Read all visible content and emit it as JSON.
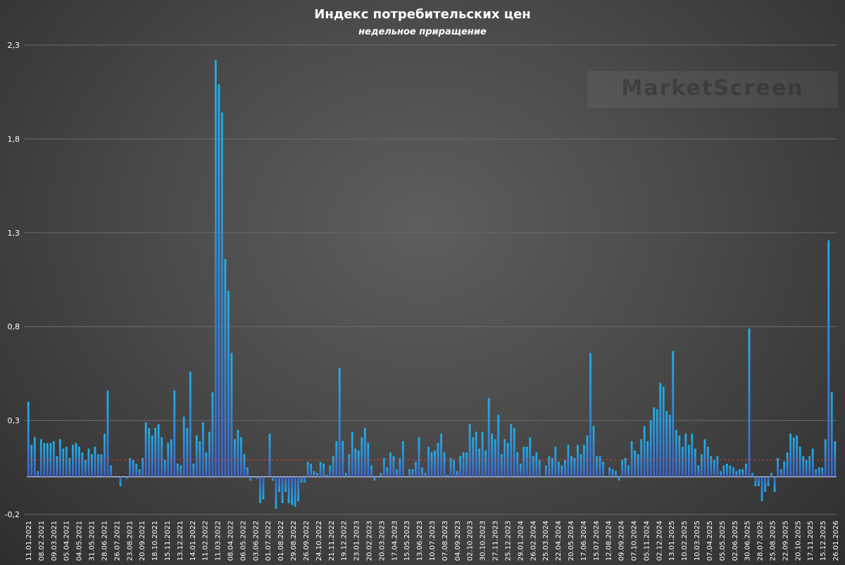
{
  "title": "Индекс потребительских цен",
  "subtitle": "недельное приращение",
  "watermark": "MarketScreen",
  "colors": {
    "bar_top": "#1fb1ec",
    "bar_bottom": "#3e63c7",
    "reference_line": "#d23c3c",
    "grid": "#6a6a6a"
  },
  "chart_data": {
    "type": "bar",
    "ylim": [
      -0.2,
      2.3
    ],
    "yticks": [
      -0.2,
      0.3,
      0.8,
      1.3,
      1.8,
      2.3
    ],
    "ytick_labels": [
      "-0,2",
      "0,3",
      "0,8",
      "1,3",
      "1,8",
      "2,3"
    ],
    "reference_line": 0.09,
    "xtick_labels": [
      "11.01.2021",
      "08.02.2021",
      "09.03.2021",
      "05.04.2021",
      "04.05.2021",
      "31.05.2021",
      "28.06.2021",
      "26.07.2021",
      "23.08.2021",
      "20.09.2021",
      "18.10.2021",
      "15.11.2021",
      "13.12.2021",
      "14.01.2022",
      "11.02.2022",
      "11.03.2022",
      "08.04.2022",
      "06.05.2022",
      "03.06.2022",
      "01.07.2022",
      "01.08.2022",
      "29.08.2022",
      "26.09.2022",
      "24.10.2022",
      "21.11.2022",
      "19.12.2022",
      "23.01.2023",
      "20.02.2023",
      "20.03.2023",
      "17.04.2023",
      "15.05.2023",
      "13.06.2023",
      "10.07.2023",
      "07.08.2023",
      "04.09.2023",
      "02.10.2023",
      "30.10.2023",
      "27.11.2023",
      "25.12.2023",
      "29.01.2024",
      "26.02.2024",
      "25.03.2024",
      "22.04.2024",
      "20.05.2024",
      "17.06.2024",
      "15.07.2024",
      "12.08.2024",
      "09.09.2024",
      "07.10.2024",
      "05.11.2024",
      "02.12.2024",
      "13.01.2025",
      "10.02.2025",
      "10.03.2025",
      "07.04.2025",
      "05.05.2025",
      "02.06.2025",
      "30.06.2025",
      "28.07.2025",
      "25.08.2025",
      "22.09.2025",
      "20.10.2025",
      "17.11.2025",
      "15.12.2025",
      "26.01.2026"
    ],
    "values": [
      0.4,
      0.17,
      0.21,
      0.03,
      0.2,
      0.18,
      0.18,
      0.18,
      0.19,
      0.11,
      0.2,
      0.15,
      0.16,
      0.1,
      0.17,
      0.18,
      0.16,
      0.13,
      0.09,
      0.15,
      0.12,
      0.16,
      0.12,
      0.12,
      0.23,
      0.46,
      0.06,
      0.0,
      0.0,
      -0.05,
      0.0,
      -0.01,
      0.1,
      0.09,
      0.07,
      0.04,
      0.1,
      0.29,
      0.26,
      0.22,
      0.26,
      0.28,
      0.21,
      0.09,
      0.18,
      0.2,
      0.46,
      0.07,
      0.06,
      0.32,
      0.26,
      0.56,
      0.07,
      0.22,
      0.19,
      0.29,
      0.13,
      0.24,
      0.45,
      2.22,
      2.09,
      1.94,
      1.16,
      0.99,
      0.66,
      0.2,
      0.25,
      0.21,
      0.12,
      0.05,
      -0.02,
      0.0,
      -0.01,
      -0.14,
      -0.12,
      0.0,
      0.23,
      -0.02,
      -0.17,
      -0.08,
      -0.14,
      -0.08,
      -0.14,
      -0.15,
      -0.16,
      -0.13,
      -0.03,
      -0.03,
      0.08,
      0.07,
      0.03,
      0.02,
      0.08,
      0.07,
      0.01,
      0.06,
      0.11,
      0.19,
      0.58,
      0.19,
      0.02,
      0.12,
      0.24,
      0.15,
      0.14,
      0.21,
      0.26,
      0.18,
      0.06,
      -0.02,
      0.0,
      0.02,
      0.1,
      0.05,
      0.13,
      0.11,
      0.04,
      0.1,
      0.19,
      0.0,
      0.04,
      0.04,
      0.08,
      0.21,
      0.05,
      0.02,
      0.16,
      0.13,
      0.14,
      0.18,
      0.23,
      0.13,
      0.01,
      0.1,
      0.09,
      0.03,
      0.11,
      0.13,
      0.13,
      0.28,
      0.21,
      0.24,
      0.15,
      0.24,
      0.14,
      0.42,
      0.23,
      0.2,
      0.33,
      0.12,
      0.2,
      0.18,
      0.28,
      0.26,
      0.13,
      0.07,
      0.16,
      0.16,
      0.21,
      0.11,
      0.13,
      0.09,
      0.0,
      0.06,
      0.11,
      0.1,
      0.16,
      0.08,
      0.06,
      0.09,
      0.17,
      0.11,
      0.1,
      0.17,
      0.12,
      0.17,
      0.22,
      0.66,
      0.27,
      0.11,
      0.11,
      0.08,
      0.0,
      0.05,
      0.04,
      0.03,
      -0.02,
      0.09,
      0.1,
      0.06,
      0.19,
      0.14,
      0.12,
      0.2,
      0.27,
      0.19,
      0.3,
      0.37,
      0.36,
      0.5,
      0.48,
      0.35,
      0.33,
      0.67,
      0.25,
      0.22,
      0.16,
      0.23,
      0.17,
      0.23,
      0.15,
      0.06,
      0.12,
      0.2,
      0.16,
      0.11,
      0.09,
      0.11,
      0.03,
      0.06,
      0.07,
      0.06,
      0.05,
      0.03,
      0.04,
      0.04,
      0.07,
      0.79,
      0.02,
      -0.05,
      -0.05,
      -0.13,
      -0.08,
      -0.05,
      0.02,
      -0.08,
      0.1,
      0.04,
      0.08,
      0.13,
      0.23,
      0.21,
      0.22,
      0.16,
      0.11,
      0.09,
      0.11,
      0.15,
      0.04,
      0.05,
      0.05,
      0.2,
      1.26,
      0.45,
      0.19
    ]
  }
}
